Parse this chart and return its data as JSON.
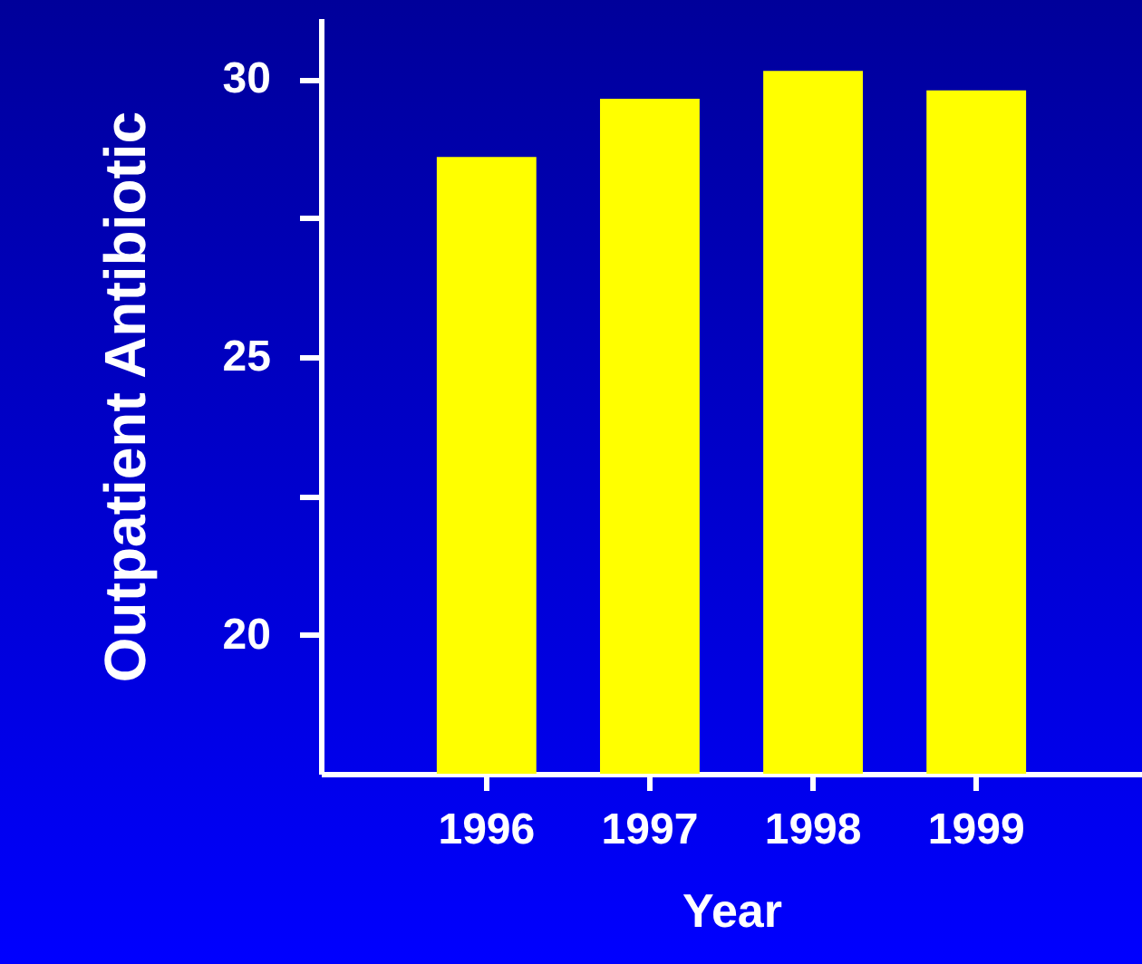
{
  "chart_data": {
    "type": "bar",
    "xlabel": "Year",
    "ylabel": "Outpatient Antibiotic",
    "categories": [
      "1996",
      "1997",
      "1998",
      "1999"
    ],
    "values": [
      28.6,
      29.65,
      30.15,
      29.8
    ],
    "color": "#ffff00",
    "ylim": [
      17.5,
      31.1
    ],
    "yticks": [
      20,
      {
        "value": 22.5,
        "label": null
      },
      25,
      {
        "value": 27.5,
        "label": null
      },
      30
    ],
    "grid": false
  }
}
